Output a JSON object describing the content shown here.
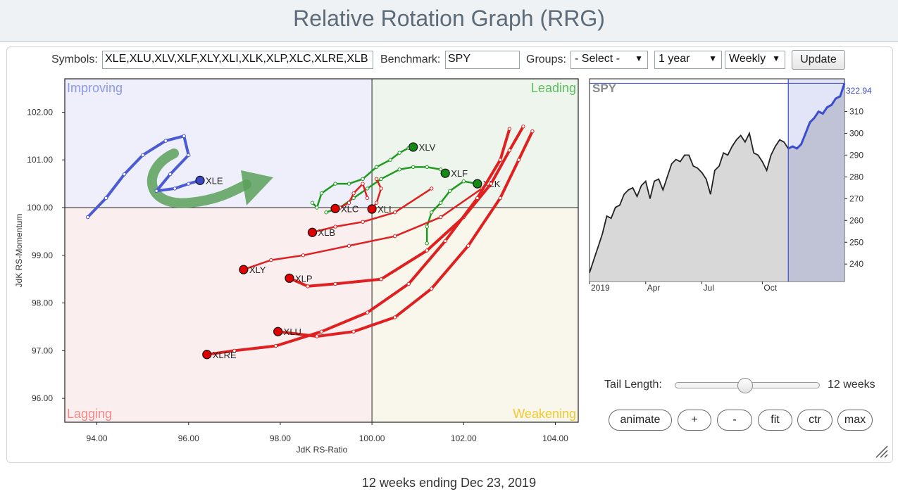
{
  "header": {
    "title": "Relative Rotation Graph (RRG)"
  },
  "controls": {
    "symbols_label": "Symbols:",
    "symbols_value": "XLE,XLU,XLV,XLF,XLY,XLI,XLK,XLP,XLC,XLRE,XLB",
    "benchmark_label": "Benchmark:",
    "benchmark_value": "SPY",
    "groups_label": "Groups:",
    "groups_selected": "- Select -",
    "period_selected": "1 year",
    "interval_selected": "Weekly",
    "update_label": "Update"
  },
  "quadrants": {
    "improving": "Improving",
    "leading": "Leading",
    "lagging": "Lagging",
    "weakening": "Weakening"
  },
  "colors": {
    "improving": "#4a5bd4",
    "leading": "#1e9a1e",
    "lagging": "#e02020",
    "weakening": "#e6b800",
    "arrow": "#4a9a4a"
  },
  "chart_data": {
    "type": "scatter",
    "xlabel": "JdK RS-Ratio",
    "ylabel": "JdK RS-Momentum",
    "xlim": [
      93.3,
      104.5
    ],
    "ylim": [
      95.5,
      102.7
    ],
    "x_ticks": [
      "94.00",
      "96.00",
      "98.00",
      "100.00",
      "102.00",
      "104.00"
    ],
    "y_ticks": [
      "102.00",
      "101.00",
      "100.00",
      "99.00",
      "98.00",
      "97.00",
      "96.00"
    ],
    "series": [
      {
        "name": "XLE",
        "quadrant": "improving",
        "tail": [
          [
            93.8,
            99.8
          ],
          [
            94.2,
            100.2
          ],
          [
            94.6,
            100.7
          ],
          [
            95.0,
            101.1
          ],
          [
            95.5,
            101.4
          ],
          [
            95.9,
            101.5
          ],
          [
            96.0,
            101.1
          ],
          [
            95.6,
            100.7
          ],
          [
            95.3,
            100.35
          ],
          [
            95.7,
            100.4
          ],
          [
            96.0,
            100.5
          ],
          [
            96.25,
            100.57
          ]
        ]
      },
      {
        "name": "XLV",
        "quadrant": "leading",
        "tail": [
          [
            98.7,
            100.1
          ],
          [
            98.8,
            100.0
          ],
          [
            98.9,
            100.3
          ],
          [
            99.2,
            100.5
          ],
          [
            99.5,
            100.5
          ],
          [
            99.8,
            100.6
          ],
          [
            100.1,
            100.85
          ],
          [
            100.4,
            101.0
          ],
          [
            100.6,
            101.15
          ],
          [
            100.8,
            101.25
          ],
          [
            100.9,
            101.27
          ]
        ]
      },
      {
        "name": "XLF",
        "quadrant": "leading",
        "tail": [
          [
            99.0,
            99.9
          ],
          [
            99.3,
            100.0
          ],
          [
            99.6,
            100.2
          ],
          [
            99.9,
            100.4
          ],
          [
            100.2,
            100.6
          ],
          [
            100.6,
            100.8
          ],
          [
            100.9,
            100.85
          ],
          [
            101.2,
            100.85
          ],
          [
            101.5,
            100.8
          ],
          [
            101.6,
            100.72
          ]
        ]
      },
      {
        "name": "XLK",
        "quadrant": "leading",
        "tail": [
          [
            101.2,
            99.25
          ],
          [
            101.2,
            99.6
          ],
          [
            101.3,
            99.9
          ],
          [
            101.5,
            100.1
          ],
          [
            101.7,
            100.35
          ],
          [
            102.0,
            100.55
          ],
          [
            102.3,
            100.5
          ]
        ]
      },
      {
        "name": "XLC",
        "quadrant": "lagging",
        "tail": [
          [
            99.9,
            100.2
          ],
          [
            99.8,
            100.5
          ],
          [
            99.6,
            100.3
          ],
          [
            99.5,
            100.1
          ],
          [
            99.3,
            100.0
          ],
          [
            99.2,
            99.98
          ]
        ]
      },
      {
        "name": "XLI",
        "quadrant": "lagging",
        "tail": [
          [
            100.1,
            100.6
          ],
          [
            100.2,
            100.4
          ],
          [
            100.1,
            100.1
          ],
          [
            100.0,
            99.97
          ]
        ]
      },
      {
        "name": "XLB",
        "quadrant": "lagging",
        "tail": [
          [
            101.3,
            100.4
          ],
          [
            100.5,
            99.9
          ],
          [
            99.8,
            99.7
          ],
          [
            99.2,
            99.6
          ],
          [
            98.7,
            99.48
          ]
        ]
      },
      {
        "name": "XLY",
        "quadrant": "lagging",
        "tail": [
          [
            102.4,
            100.4
          ],
          [
            101.5,
            99.8
          ],
          [
            100.5,
            99.4
          ],
          [
            99.5,
            99.2
          ],
          [
            98.5,
            99.0
          ],
          [
            97.8,
            98.9
          ],
          [
            97.2,
            98.7
          ]
        ]
      },
      {
        "name": "XLP",
        "quadrant": "lagging",
        "tail": [
          [
            103.3,
            101.7
          ],
          [
            103.0,
            101.2
          ],
          [
            102.6,
            100.5
          ],
          [
            102.0,
            99.8
          ],
          [
            101.2,
            99.1
          ],
          [
            100.2,
            98.5
          ],
          [
            99.2,
            98.4
          ],
          [
            98.6,
            98.35
          ],
          [
            98.2,
            98.52
          ]
        ]
      },
      {
        "name": "XLU",
        "quadrant": "lagging",
        "tail": [
          [
            103.5,
            101.6
          ],
          [
            103.2,
            101.0
          ],
          [
            102.8,
            100.2
          ],
          [
            102.1,
            99.2
          ],
          [
            101.3,
            98.3
          ],
          [
            100.5,
            97.7
          ],
          [
            99.6,
            97.4
          ],
          [
            98.8,
            97.3
          ],
          [
            97.95,
            97.4
          ]
        ]
      },
      {
        "name": "XLRE",
        "quadrant": "lagging",
        "tail": [
          [
            103.0,
            101.65
          ],
          [
            102.8,
            101.0
          ],
          [
            102.3,
            100.2
          ],
          [
            101.6,
            99.3
          ],
          [
            100.8,
            98.4
          ],
          [
            99.9,
            97.8
          ],
          [
            98.9,
            97.4
          ],
          [
            97.9,
            97.1
          ],
          [
            97.0,
            97.0
          ],
          [
            96.4,
            96.92
          ]
        ]
      }
    ]
  },
  "spy_chart": {
    "title": "SPY",
    "last_value": "322.94",
    "y_ticks": [
      "310",
      "300",
      "290",
      "280",
      "270",
      "260",
      "250",
      "240"
    ],
    "x_ticks": [
      "2019",
      "Apr",
      "Jul",
      "Oct"
    ],
    "ylim": [
      232,
      325
    ],
    "values": [
      236,
      242,
      248,
      254,
      262,
      261,
      266,
      267,
      272,
      274,
      275,
      271,
      276,
      278,
      270,
      278,
      279,
      274,
      280,
      286,
      288,
      287,
      290,
      290,
      285,
      284,
      282,
      279,
      272,
      283,
      285,
      291,
      290,
      294,
      297,
      299,
      296,
      300,
      291,
      290,
      287,
      283,
      290,
      294,
      297,
      296,
      293,
      294,
      293,
      295,
      300,
      305,
      307,
      310,
      309,
      312,
      313,
      316,
      317,
      322.94
    ],
    "highlight_start_index": 46
  },
  "tail": {
    "label": "Tail Length:",
    "value": "12 weeks",
    "fraction": 0.48
  },
  "buttons": {
    "animate": "animate",
    "plus": "+",
    "minus": "-",
    "fit": "fit",
    "ctr": "ctr",
    "max": "max"
  },
  "footer": {
    "text": "12 weeks ending Dec 23, 2019"
  }
}
